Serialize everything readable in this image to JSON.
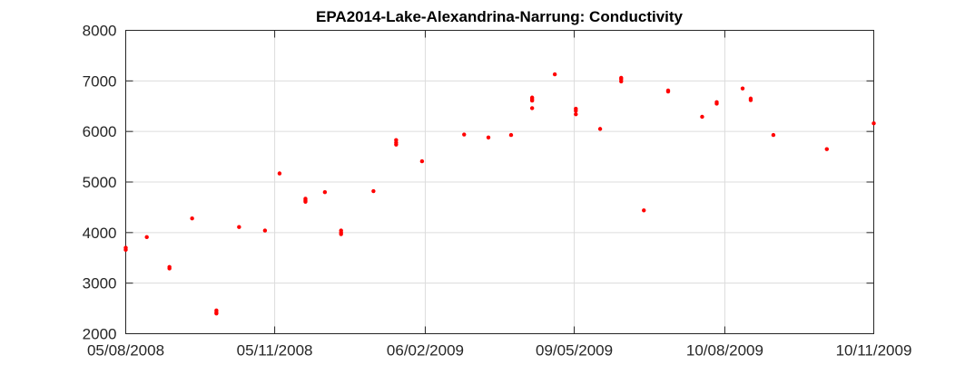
{
  "chart_data": {
    "type": "scatter",
    "title": "EPA2014-Lake-Alexandrina-Narrung: Conductivity",
    "xlabel": "",
    "ylabel": "",
    "x_ticks": [
      "05/08/2008",
      "05/11/2008",
      "06/02/2009",
      "09/05/2009",
      "10/08/2009",
      "10/11/2009"
    ],
    "x_range": [
      "05/08/2008",
      "10/11/2009"
    ],
    "ylim": [
      2000,
      8000
    ],
    "y_ticks": [
      2000,
      3000,
      4000,
      5000,
      6000,
      7000,
      8000
    ],
    "grid": true,
    "marker_color": "#ff0000",
    "series": [
      {
        "points": [
          [
            "05/08/2008",
            3700
          ],
          [
            "05/08/2008",
            3660
          ],
          [
            "18/08/2008",
            3910
          ],
          [
            "01/09/2008",
            3320
          ],
          [
            "01/09/2008",
            3290
          ],
          [
            "15/09/2008",
            4280
          ],
          [
            "30/09/2008",
            2460
          ],
          [
            "30/09/2008",
            2420
          ],
          [
            "30/09/2008",
            2400
          ],
          [
            "14/10/2008",
            4110
          ],
          [
            "30/10/2008",
            4040
          ],
          [
            "08/11/2008",
            5170
          ],
          [
            "24/11/2008",
            4670
          ],
          [
            "24/11/2008",
            4640
          ],
          [
            "24/11/2008",
            4610
          ],
          [
            "06/12/2008",
            4800
          ],
          [
            "16/12/2008",
            4040
          ],
          [
            "16/12/2008",
            4000
          ],
          [
            "16/12/2008",
            3970
          ],
          [
            "05/01/2009",
            4820
          ],
          [
            "19/01/2009",
            5830
          ],
          [
            "19/01/2009",
            5780
          ],
          [
            "19/01/2009",
            5740
          ],
          [
            "04/02/2009",
            5410
          ],
          [
            "02/03/2009",
            5940
          ],
          [
            "17/03/2009",
            5880
          ],
          [
            "31/03/2009",
            5930
          ],
          [
            "13/04/2009",
            6670
          ],
          [
            "13/04/2009",
            6640
          ],
          [
            "13/04/2009",
            6610
          ],
          [
            "13/04/2009",
            6460
          ],
          [
            "27/04/2009",
            7130
          ],
          [
            "10/05/2009",
            6450
          ],
          [
            "10/05/2009",
            6410
          ],
          [
            "10/05/2009",
            6340
          ],
          [
            "25/05/2009",
            6050
          ],
          [
            "07/06/2009",
            7060
          ],
          [
            "07/06/2009",
            7030
          ],
          [
            "07/06/2009",
            6990
          ],
          [
            "21/06/2009",
            4440
          ],
          [
            "06/07/2009",
            6810
          ],
          [
            "06/07/2009",
            6790
          ],
          [
            "27/07/2009",
            6290
          ],
          [
            "05/08/2009",
            6580
          ],
          [
            "05/08/2009",
            6550
          ],
          [
            "21/08/2009",
            6850
          ],
          [
            "26/08/2009",
            6650
          ],
          [
            "26/08/2009",
            6620
          ],
          [
            "09/09/2009",
            5930
          ],
          [
            "12/10/2009",
            5650
          ],
          [
            "10/11/2009",
            6160
          ]
        ]
      }
    ]
  }
}
